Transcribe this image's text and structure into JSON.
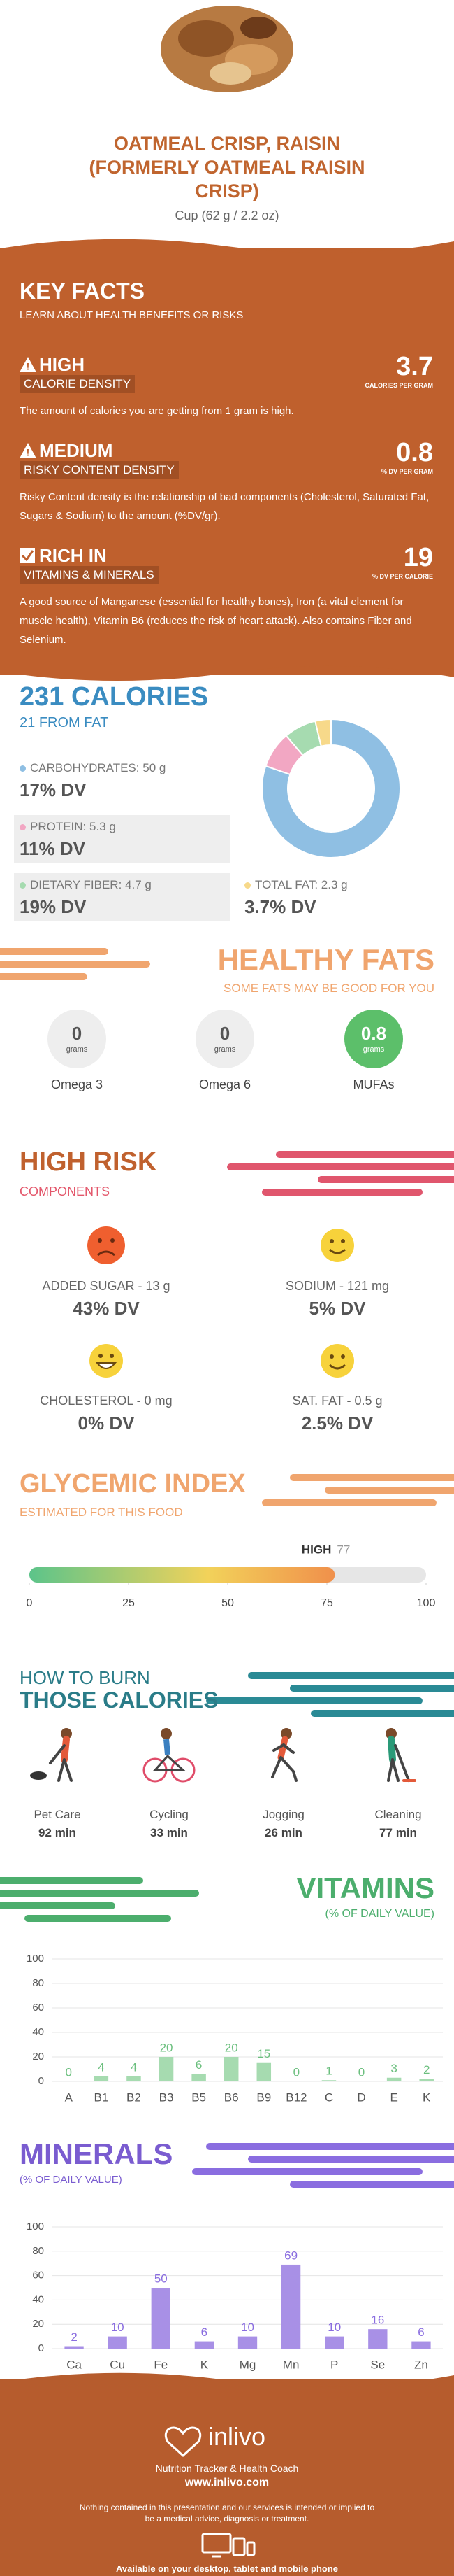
{
  "header": {
    "title": "OATMEAL CRISP, RAISIN (FORMERLY OATMEAL RAISIN CRISP)",
    "serving": "Cup (62 g / 2.2 oz)"
  },
  "key_facts": {
    "title": "KEY FACTS",
    "subtitle": "LEARN ABOUT HEALTH BENEFITS OR RISKS",
    "items": [
      {
        "level": "HIGH",
        "label": "CALORIE DENSITY",
        "value": 3.7,
        "unit": "CALORIES PER GRAM",
        "text": "The amount of calories you are getting from 1 gram is high."
      },
      {
        "level": "MEDIUM",
        "label": "RISKY CONTENT DENSITY",
        "value": 0.8,
        "unit": "% DV PER GRAM",
        "text": "Risky Content density is the relationship of bad components (Cholesterol, Saturated Fat, Sugars & Sodium) to the amount (%DV/gr)."
      },
      {
        "level": "RICH IN",
        "label": "VITAMINS & MINERALS",
        "value": 19,
        "unit": "% DV PER CALORIE",
        "text": "A good source of Manganese (essential for healthy bones), Iron (a vital element for muscle health), Vitamin B6 (reduces the risk of heart attack). Also contains Fiber and Selenium."
      }
    ]
  },
  "calories": {
    "type": "pie",
    "total": 231,
    "total_label": "CALORIES",
    "fat": 21,
    "fat_label": "FROM FAT",
    "nutrients": [
      {
        "name": "CARBOHYDRATES:",
        "grams": 50,
        "unit": "g",
        "dv": "17% DV",
        "color": "#8fbfe3"
      },
      {
        "name": "PROTEIN:",
        "grams": 5.3,
        "unit": "g",
        "dv": "11% DV",
        "color": "#f2a7c3"
      },
      {
        "name": "DIETARY FIBER:",
        "grams": 4.7,
        "unit": "g",
        "dv": "19% DV",
        "color": "#a6dbb0"
      },
      {
        "name": "TOTAL FAT:",
        "grams": 2.3,
        "unit": "g",
        "dv": "3.7% DV",
        "color": "#f7d98a"
      }
    ]
  },
  "healthy_fats": {
    "title": "HEALTHY FATS",
    "subtitle": "SOME FATS MAY BE GOOD FOR YOU",
    "unit": "grams",
    "items": [
      {
        "name": "Omega 3",
        "value": 0
      },
      {
        "name": "Omega 6",
        "value": 0
      },
      {
        "name": "MUFAs",
        "value": 0.8
      }
    ]
  },
  "high_risk": {
    "title": "HIGH RISK",
    "subtitle": "COMPONENTS",
    "items": [
      {
        "name": "ADDED SUGAR - 13 g",
        "dv": "43% DV"
      },
      {
        "name": "SODIUM - 121 mg",
        "dv": "5% DV"
      },
      {
        "name": "CHOLESTEROL - 0 mg",
        "dv": "0% DV"
      },
      {
        "name": "SAT. FAT - 0.5 g",
        "dv": "2.5% DV"
      }
    ]
  },
  "glycemic_index": {
    "type": "bar",
    "title": "GLYCEMIC INDEX",
    "subtitle": "ESTIMATED FOR THIS FOOD",
    "level": "HIGH",
    "value": 77,
    "xlim": [
      0,
      100
    ],
    "xticks": [
      0,
      25,
      50,
      75,
      100
    ]
  },
  "burn": {
    "title_1": "HOW TO BURN",
    "title_2": "THOSE CALORIES",
    "unit": "min",
    "activities": [
      {
        "name": "Pet Care",
        "minutes": 92
      },
      {
        "name": "Cycling",
        "minutes": 33
      },
      {
        "name": "Jogging",
        "minutes": 26
      },
      {
        "name": "Cleaning",
        "minutes": 77
      }
    ]
  },
  "vitamins": {
    "type": "bar",
    "title": "VITAMINS",
    "subtitle": "(% OF DAILY VALUE)",
    "categories": [
      "A",
      "B1",
      "B2",
      "B3",
      "B5",
      "B6",
      "B9",
      "B12",
      "C",
      "D",
      "E",
      "K"
    ],
    "values": [
      0,
      4,
      4,
      20,
      6,
      20,
      15,
      0,
      1,
      0,
      3,
      2
    ],
    "color": "#a6dbb0",
    "ylim": [
      0,
      100
    ],
    "yticks": [
      0,
      20,
      40,
      60,
      80,
      100
    ],
    "grid": true
  },
  "minerals": {
    "type": "bar",
    "title": "MINERALS",
    "subtitle": "(% OF DAILY VALUE)",
    "categories": [
      "Ca",
      "Cu",
      "Fe",
      "K",
      "Mg",
      "Mn",
      "P",
      "Se",
      "Zn"
    ],
    "values": [
      2,
      10,
      50,
      6,
      10,
      69,
      10,
      16,
      6
    ],
    "color": "#a890e6",
    "ylim": [
      0,
      100
    ],
    "yticks": [
      0,
      20,
      40,
      60,
      80,
      100
    ],
    "grid": true
  },
  "footer": {
    "brand": "inlivo",
    "tagline": "Nutrition Tracker & Health Coach",
    "url": "www.inlivo.com",
    "disclaimer": "Nothing contained in this presentation and our services is intended or implied to be a medical advice, diagnosis or treatment.",
    "availability": "Available on your desktop, tablet and mobile phone"
  }
}
